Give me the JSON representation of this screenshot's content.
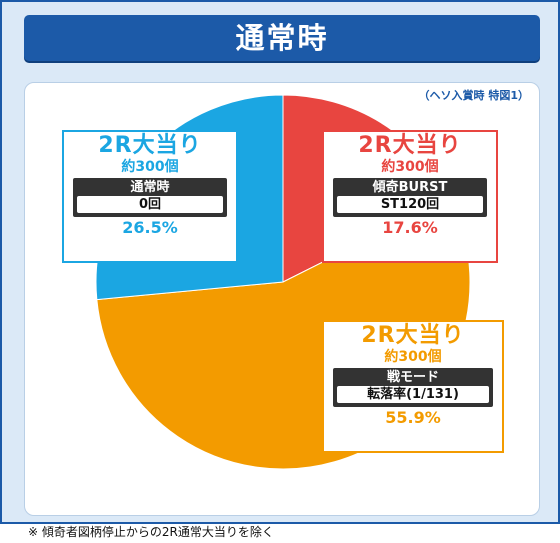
{
  "title": "通常時",
  "note": "（ヘソ入賞時 特図1）",
  "footnote": "※ 傾奇者図柄停止からの2R通常大当りを除く",
  "colors": {
    "frame": "#1c5aa8",
    "red": "#e84540",
    "blue": "#1ba6e2",
    "orange": "#f39b00"
  },
  "chart_data": {
    "type": "pie",
    "title": "通常時",
    "slices": [
      {
        "label": "2R大当り",
        "count": "約300個",
        "mode": "傾奇BURST",
        "detail": "ST120回",
        "value": 17.6,
        "pct": "17.6%",
        "color": "#e84540"
      },
      {
        "label": "2R大当り",
        "count": "約300個",
        "mode": "戦モード",
        "detail": "転落率(1/131)",
        "value": 55.9,
        "pct": "55.9%",
        "color": "#f39b00"
      },
      {
        "label": "2R大当り",
        "count": "約300個",
        "mode": "通常時",
        "detail": "0回",
        "value": 26.5,
        "pct": "26.5%",
        "color": "#1ba6e2"
      }
    ]
  }
}
